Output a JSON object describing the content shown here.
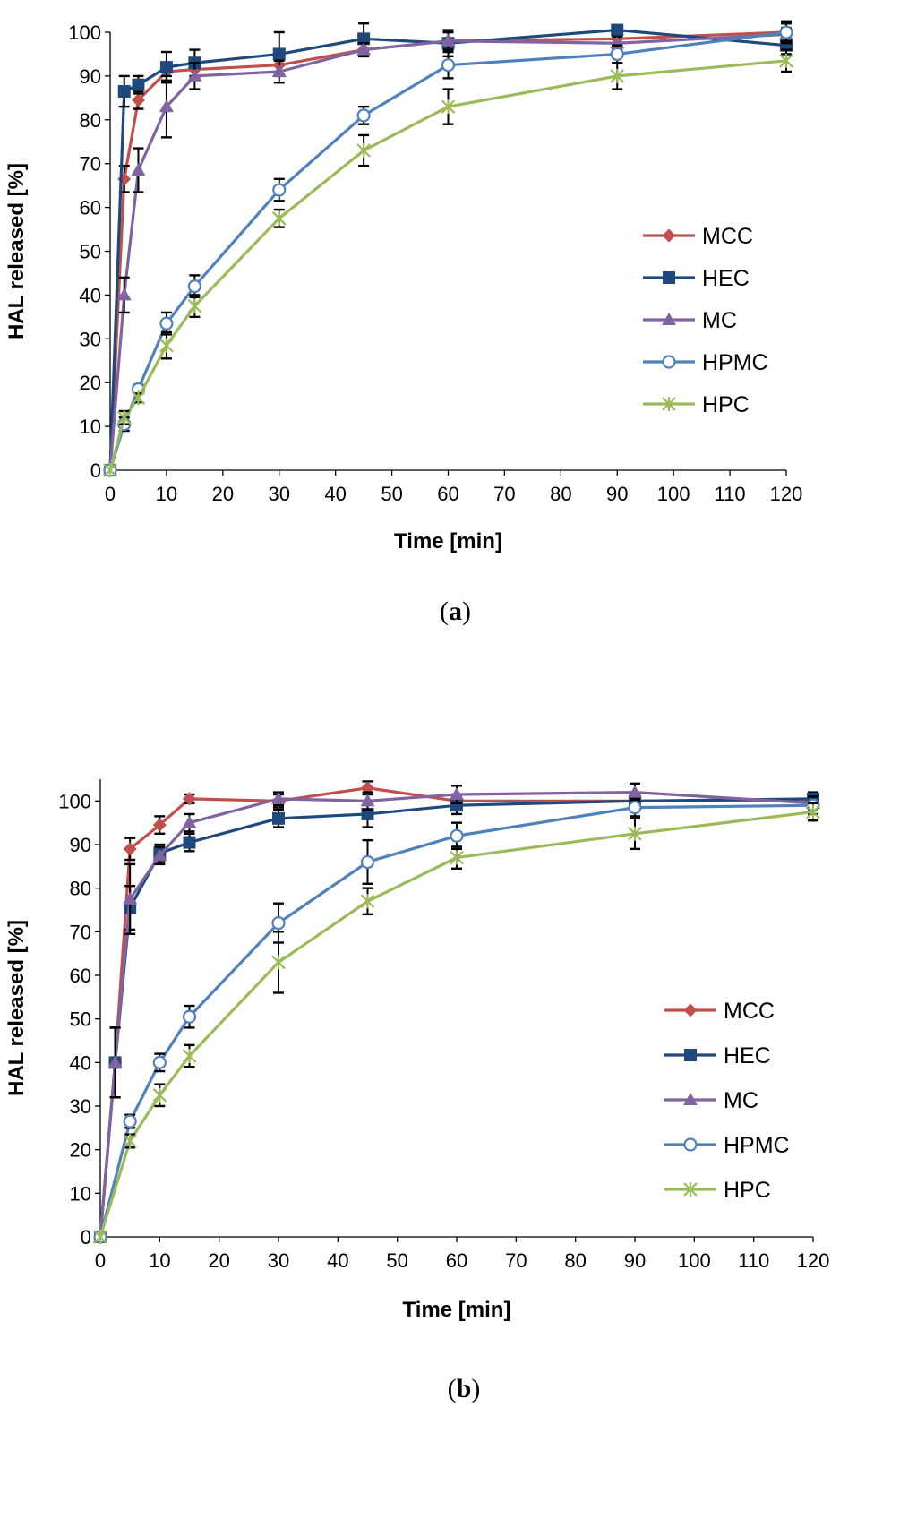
{
  "chart_data": [
    {
      "type": "line",
      "panel": "a",
      "caption": {
        "open": "(",
        "label": "a",
        "close": ")"
      },
      "title": "",
      "xlabel": "Time [min]",
      "ylabel": "HAL released [%]",
      "xlim": [
        0,
        120
      ],
      "ylim": [
        0,
        100
      ],
      "xticks": [
        0,
        10,
        20,
        30,
        40,
        50,
        60,
        70,
        80,
        90,
        100,
        110,
        120
      ],
      "yticks": [
        0,
        10,
        20,
        30,
        40,
        50,
        60,
        70,
        80,
        90,
        100
      ],
      "grid": false,
      "legend_position": "right-middle",
      "series": [
        {
          "name": "MCC",
          "color": "#c0504d",
          "marker": "diamond",
          "x": [
            0,
            2.5,
            5,
            10,
            15,
            30,
            45,
            60,
            90,
            120
          ],
          "y": [
            0,
            66.5,
            84.5,
            91,
            91.5,
            92.5,
            96,
            98,
            98.5,
            100
          ],
          "err": [
            0,
            3,
            2,
            2,
            2,
            2,
            1.5,
            2,
            1.5,
            2
          ]
        },
        {
          "name": "HEC",
          "color": "#1f497d",
          "marker": "square",
          "x": [
            0,
            2.5,
            5,
            10,
            15,
            30,
            45,
            60,
            90,
            120
          ],
          "y": [
            0,
            86.5,
            88,
            92,
            93,
            95,
            98.5,
            97.5,
            100.5,
            97
          ],
          "err": [
            0,
            3.5,
            2,
            3.5,
            3,
            5,
            3.5,
            3,
            1,
            2
          ]
        },
        {
          "name": "MC",
          "color": "#8064a2",
          "marker": "triangle",
          "x": [
            0,
            2.5,
            5,
            10,
            15,
            30,
            45,
            60,
            90,
            120
          ],
          "y": [
            0,
            40,
            68.5,
            83,
            90,
            91,
            96,
            98,
            97.5,
            99.5
          ],
          "err": [
            0,
            4,
            5,
            7,
            3,
            2.5,
            1.5,
            2,
            1.5,
            1.5
          ]
        },
        {
          "name": "HPMC",
          "color": "#4f81bd",
          "marker": "circle-open",
          "x": [
            0,
            2.5,
            5,
            10,
            15,
            30,
            45,
            60,
            90,
            120
          ],
          "y": [
            0,
            10.5,
            18.5,
            33.5,
            42,
            64,
            81,
            92.5,
            95,
            100
          ],
          "err": [
            0,
            1.5,
            1,
            2.5,
            2.5,
            2.5,
            2,
            3,
            2,
            2.5
          ]
        },
        {
          "name": "HPC",
          "color": "#9bbb59",
          "marker": "star",
          "x": [
            0,
            2.5,
            5,
            10,
            15,
            30,
            45,
            60,
            90,
            120
          ],
          "y": [
            0,
            12,
            16.5,
            28.5,
            37.5,
            57.5,
            73,
            83,
            90,
            93.5
          ],
          "err": [
            0,
            1.5,
            1,
            3,
            2.5,
            2,
            3.5,
            4,
            3,
            2.5
          ]
        }
      ]
    },
    {
      "type": "line",
      "panel": "b",
      "caption": {
        "open": "(",
        "label": "b",
        "close": ")"
      },
      "title": "",
      "xlabel": "Time [min]",
      "ylabel": "HAL released [%]",
      "xlim": [
        0,
        120
      ],
      "ylim": [
        0,
        105
      ],
      "xticks": [
        0,
        10,
        20,
        30,
        40,
        50,
        60,
        70,
        80,
        90,
        100,
        110,
        120
      ],
      "yticks": [
        0,
        10,
        20,
        30,
        40,
        50,
        60,
        70,
        80,
        90,
        100
      ],
      "grid": false,
      "legend_position": "right-middle",
      "series": [
        {
          "name": "MCC",
          "color": "#c0504d",
          "marker": "diamond",
          "x": [
            0,
            2.5,
            5,
            10,
            15,
            30,
            45,
            60,
            90,
            120
          ],
          "y": [
            0,
            40,
            89,
            94.5,
            100.5,
            100,
            103,
            100,
            100,
            100
          ],
          "err": [
            0,
            8,
            2.5,
            2,
            1,
            1.5,
            1.5,
            1.5,
            1.5,
            1.5
          ]
        },
        {
          "name": "HEC",
          "color": "#1f497d",
          "marker": "square",
          "x": [
            0,
            2.5,
            5,
            10,
            15,
            30,
            45,
            60,
            90,
            120
          ],
          "y": [
            0,
            40,
            75.5,
            88,
            90.5,
            96,
            97,
            99,
            100,
            100.5
          ],
          "err": [
            0,
            8,
            5,
            2,
            2,
            2,
            3,
            2,
            2,
            1.5
          ]
        },
        {
          "name": "MC",
          "color": "#8064a2",
          "marker": "triangle",
          "x": [
            0,
            2.5,
            5,
            10,
            15,
            30,
            45,
            60,
            90,
            120
          ],
          "y": [
            0,
            40,
            77.5,
            87.5,
            95,
            100.5,
            100,
            101.5,
            102,
            99.5
          ],
          "err": [
            0,
            8,
            8,
            2,
            2,
            1.5,
            2,
            2,
            2,
            1.5
          ]
        },
        {
          "name": "HPMC",
          "color": "#4f81bd",
          "marker": "circle-open",
          "x": [
            0,
            5,
            10,
            15,
            30,
            45,
            60,
            90,
            120
          ],
          "y": [
            0,
            26.5,
            40,
            50.5,
            72,
            86,
            92,
            98.5,
            99
          ],
          "err": [
            0,
            1.5,
            2,
            2.5,
            4.5,
            5,
            3,
            2,
            2
          ]
        },
        {
          "name": "HPC",
          "color": "#9bbb59",
          "marker": "star",
          "x": [
            0,
            5,
            10,
            15,
            30,
            45,
            60,
            90,
            120
          ],
          "y": [
            0,
            22,
            32.5,
            41.5,
            63,
            77,
            87,
            92.5,
            97.5
          ],
          "err": [
            0,
            1.5,
            2.5,
            2.5,
            7,
            3,
            2.5,
            3.5,
            2
          ]
        }
      ]
    }
  ]
}
